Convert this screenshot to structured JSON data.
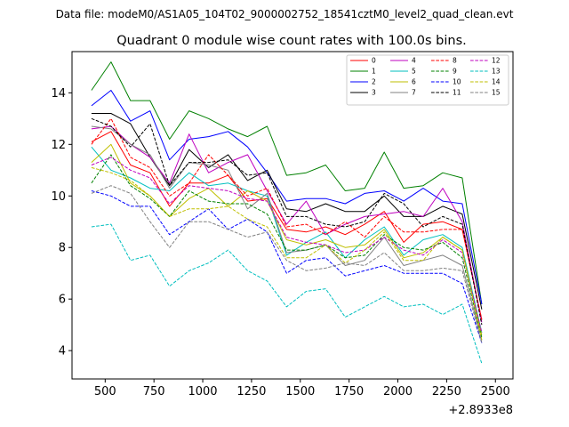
{
  "suptitle": "Data file: modeM0/AS1A05_104T02_9000002752_18541cztM0_level2_quad_clean.evt",
  "chart_data": {
    "type": "line",
    "title": "Quadrant 0 module wise count rates with 100.0s bins.",
    "xlabel": "",
    "ylabel": "",
    "offset_text": "+2.8933e8",
    "xlim": [
      330,
      2590
    ],
    "ylim": [
      2.9,
      15.6
    ],
    "xticks": [
      500,
      750,
      1000,
      1250,
      1500,
      1750,
      2000,
      2250,
      2500
    ],
    "yticks": [
      4,
      6,
      8,
      10,
      12,
      14
    ],
    "legend_position": "top-right",
    "x": [
      430,
      530,
      630,
      730,
      830,
      930,
      1030,
      1130,
      1230,
      1330,
      1430,
      1530,
      1630,
      1730,
      1830,
      1930,
      2030,
      2130,
      2230,
      2330,
      2430
    ],
    "series": [
      {
        "name": "0",
        "color": "#ff0000",
        "dash": "solid",
        "values": [
          12.1,
          12.5,
          11.2,
          10.9,
          9.6,
          10.5,
          10.5,
          10.8,
          9.8,
          9.9,
          8.7,
          8.6,
          8.8,
          8.5,
          8.9,
          9.4,
          8.2,
          8.9,
          9.0,
          8.7,
          5.2
        ]
      },
      {
        "name": "1",
        "color": "#008000",
        "dash": "solid",
        "values": [
          14.1,
          15.2,
          13.7,
          13.7,
          12.2,
          13.3,
          13.0,
          12.6,
          12.3,
          12.7,
          10.8,
          10.9,
          11.2,
          10.2,
          10.3,
          11.7,
          10.3,
          10.4,
          10.9,
          10.7,
          5.8
        ]
      },
      {
        "name": "2",
        "color": "#0000ff",
        "dash": "solid",
        "values": [
          13.5,
          14.1,
          12.9,
          13.3,
          11.4,
          12.2,
          12.3,
          12.5,
          11.9,
          10.9,
          9.8,
          9.9,
          9.9,
          9.7,
          10.1,
          10.2,
          9.8,
          10.3,
          9.8,
          9.7,
          5.8
        ]
      },
      {
        "name": "3",
        "color": "#000000",
        "dash": "solid",
        "values": [
          13.2,
          13.2,
          12.8,
          11.5,
          10.4,
          11.8,
          11.1,
          11.6,
          10.6,
          11.0,
          9.5,
          9.4,
          9.7,
          9.4,
          9.4,
          10.0,
          9.2,
          9.2,
          9.6,
          9.3,
          5.6
        ]
      },
      {
        "name": "4",
        "color": "#bf00bf",
        "dash": "solid",
        "values": [
          12.6,
          12.7,
          12.0,
          11.5,
          10.5,
          12.4,
          10.9,
          11.3,
          11.6,
          10.2,
          8.9,
          9.8,
          8.5,
          8.9,
          9.2,
          9.3,
          9.4,
          9.2,
          10.3,
          9.0,
          5.1
        ]
      },
      {
        "name": "5",
        "color": "#00bfbf",
        "dash": "solid",
        "values": [
          11.9,
          11.0,
          10.7,
          10.3,
          10.2,
          10.9,
          10.4,
          10.5,
          10.2,
          10.0,
          7.7,
          8.2,
          8.6,
          7.6,
          8.3,
          8.8,
          7.7,
          8.3,
          8.5,
          8.0,
          4.7
        ]
      },
      {
        "name": "6",
        "color": "#bfbf00",
        "dash": "solid",
        "values": [
          11.3,
          12.0,
          10.5,
          10.0,
          9.2,
          9.9,
          10.3,
          9.6,
          10.2,
          9.8,
          8.3,
          8.1,
          8.3,
          8.0,
          8.1,
          8.7,
          7.6,
          7.8,
          8.4,
          7.9,
          4.6
        ]
      },
      {
        "name": "7",
        "color": "#808080",
        "dash": "solid",
        "values": [
          12.7,
          12.6,
          12.0,
          11.6,
          10.3,
          11.3,
          11.2,
          11.0,
          9.5,
          10.1,
          7.8,
          7.9,
          8.1,
          7.3,
          7.5,
          8.4,
          7.3,
          7.5,
          7.7,
          7.3,
          4.4
        ]
      },
      {
        "name": "8",
        "color": "#ff0000",
        "dash": "dash",
        "values": [
          12.0,
          13.0,
          11.5,
          11.1,
          10.0,
          10.5,
          11.6,
          10.8,
          10.0,
          10.3,
          8.8,
          8.9,
          8.5,
          9.0,
          8.4,
          9.2,
          8.6,
          8.6,
          8.7,
          8.7,
          5.2
        ]
      },
      {
        "name": "9",
        "color": "#008000",
        "dash": "dash",
        "values": [
          10.5,
          11.6,
          10.4,
          9.9,
          9.2,
          10.2,
          9.8,
          9.7,
          9.7,
          9.3,
          7.9,
          7.9,
          8.1,
          7.6,
          7.7,
          8.5,
          8.0,
          7.9,
          8.2,
          7.6,
          4.5
        ]
      },
      {
        "name": "10",
        "color": "#0000ff",
        "dash": "dash",
        "values": [
          10.2,
          10.0,
          9.6,
          9.6,
          8.5,
          9.0,
          9.5,
          8.7,
          9.1,
          8.6,
          7.0,
          7.5,
          7.6,
          6.9,
          7.1,
          7.3,
          7.0,
          7.0,
          7.0,
          6.6,
          4.3
        ]
      },
      {
        "name": "11",
        "color": "#000000",
        "dash": "dash",
        "values": [
          13.0,
          12.7,
          11.9,
          12.8,
          10.4,
          11.3,
          11.3,
          11.4,
          10.8,
          10.9,
          9.2,
          9.2,
          8.9,
          8.8,
          9.0,
          10.1,
          9.7,
          8.8,
          9.2,
          8.9,
          5.0
        ]
      },
      {
        "name": "12",
        "color": "#bf00bf",
        "dash": "dash",
        "values": [
          11.2,
          11.5,
          11.0,
          10.7,
          9.7,
          10.4,
          10.3,
          10.2,
          9.9,
          9.8,
          8.4,
          8.2,
          8.1,
          7.8,
          7.9,
          8.4,
          7.9,
          7.7,
          8.3,
          7.8,
          4.7
        ]
      },
      {
        "name": "13",
        "color": "#00bfbf",
        "dash": "dash",
        "values": [
          8.8,
          8.9,
          7.5,
          7.7,
          6.5,
          7.1,
          7.4,
          7.9,
          7.1,
          6.7,
          5.7,
          6.3,
          6.4,
          5.3,
          5.7,
          6.1,
          5.7,
          5.8,
          5.4,
          5.8,
          3.5
        ]
      },
      {
        "name": "14",
        "color": "#bfbf00",
        "dash": "dash",
        "values": [
          11.1,
          10.9,
          10.6,
          10.0,
          9.2,
          9.5,
          9.5,
          9.6,
          9.1,
          8.8,
          7.6,
          7.6,
          8.1,
          7.4,
          7.9,
          8.6,
          7.5,
          7.5,
          8.4,
          7.9,
          4.4
        ]
      },
      {
        "name": "15",
        "color": "#808080",
        "dash": "dash",
        "values": [
          10.1,
          10.4,
          10.1,
          9.0,
          8.0,
          9.0,
          9.0,
          8.7,
          8.4,
          8.6,
          7.5,
          7.1,
          7.2,
          7.4,
          7.3,
          7.8,
          7.1,
          7.1,
          7.2,
          7.1,
          4.3
        ]
      }
    ]
  }
}
